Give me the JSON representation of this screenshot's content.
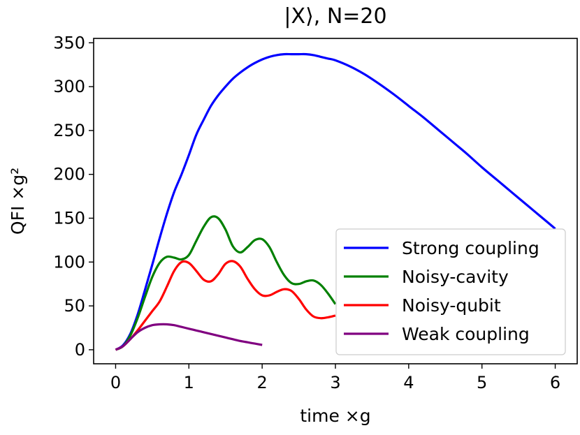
{
  "chart_data": {
    "type": "line",
    "title": "|X⟩, N=20",
    "xlabel": "time ×g",
    "ylabel": "QFI ×g²",
    "xlim": [
      -0.3,
      6.3
    ],
    "ylim": [
      -16,
      355
    ],
    "xticks": [
      0,
      1,
      2,
      3,
      4,
      5,
      6
    ],
    "yticks": [
      0,
      50,
      100,
      150,
      200,
      250,
      300,
      350
    ],
    "legend_position": "lower-right",
    "series": [
      {
        "name": "Strong coupling",
        "color": "#0000ff",
        "x": [
          0,
          0.1,
          0.2,
          0.3,
          0.4,
          0.5,
          0.6,
          0.7,
          0.8,
          0.9,
          1.0,
          1.1,
          1.2,
          1.3,
          1.4,
          1.5,
          1.6,
          1.7,
          1.8,
          1.9,
          2.0,
          2.1,
          2.2,
          2.3,
          2.4,
          2.5,
          2.6,
          2.7,
          2.8,
          2.9,
          3.0,
          3.2,
          3.4,
          3.6,
          3.8,
          4.0,
          4.2,
          4.4,
          4.6,
          4.8,
          5.0,
          5.2,
          5.4,
          5.6,
          5.8,
          6.0
        ],
        "y": [
          0,
          5,
          18,
          40,
          68,
          97,
          127,
          155,
          180,
          200,
          222,
          245,
          262,
          278,
          290,
          300,
          309,
          316,
          322,
          327,
          331,
          334,
          336,
          337,
          337,
          337,
          337,
          336,
          334,
          332,
          330,
          323,
          314,
          303,
          291,
          278,
          265,
          251,
          237,
          223,
          208,
          194,
          180,
          166,
          152,
          138
        ]
      },
      {
        "name": "Noisy-cavity",
        "color": "#008000",
        "x": [
          0,
          0.1,
          0.2,
          0.3,
          0.4,
          0.5,
          0.6,
          0.7,
          0.8,
          0.9,
          1.0,
          1.1,
          1.2,
          1.3,
          1.4,
          1.5,
          1.6,
          1.7,
          1.8,
          1.9,
          2.0,
          2.1,
          2.2,
          2.3,
          2.4,
          2.5,
          2.6,
          2.7,
          2.8,
          2.9,
          3.0
        ],
        "y": [
          0,
          4,
          16,
          36,
          60,
          83,
          99,
          106,
          105,
          103,
          108,
          124,
          140,
          151,
          150,
          137,
          118,
          111,
          117,
          125,
          126,
          117,
          100,
          85,
          76,
          75,
          78,
          79,
          74,
          64,
          52
        ]
      },
      {
        "name": "Noisy-qubit",
        "color": "#ff0000",
        "x": [
          0,
          0.1,
          0.2,
          0.3,
          0.4,
          0.5,
          0.6,
          0.7,
          0.8,
          0.9,
          1.0,
          1.1,
          1.2,
          1.3,
          1.4,
          1.5,
          1.6,
          1.7,
          1.8,
          1.9,
          2.0,
          2.1,
          2.2,
          2.3,
          2.4,
          2.5,
          2.6,
          2.7,
          2.8,
          2.9,
          3.0
        ],
        "y": [
          0,
          4,
          12,
          22,
          33,
          44,
          55,
          72,
          90,
          100,
          99,
          90,
          80,
          78,
          86,
          98,
          101,
          95,
          81,
          69,
          62,
          62,
          66,
          69,
          67,
          58,
          46,
          38,
          36,
          37,
          39
        ]
      },
      {
        "name": "Weak coupling",
        "color": "#800080",
        "x": [
          0,
          0.1,
          0.2,
          0.3,
          0.4,
          0.5,
          0.6,
          0.7,
          0.8,
          0.9,
          1.0,
          1.1,
          1.2,
          1.3,
          1.4,
          1.5,
          1.6,
          1.7,
          1.8,
          1.9,
          2.0
        ],
        "y": [
          0,
          4,
          12,
          20,
          25,
          28,
          29,
          29,
          28,
          26,
          24,
          22,
          20,
          18,
          16,
          14,
          12,
          10,
          8.5,
          7,
          5.5
        ]
      }
    ]
  }
}
